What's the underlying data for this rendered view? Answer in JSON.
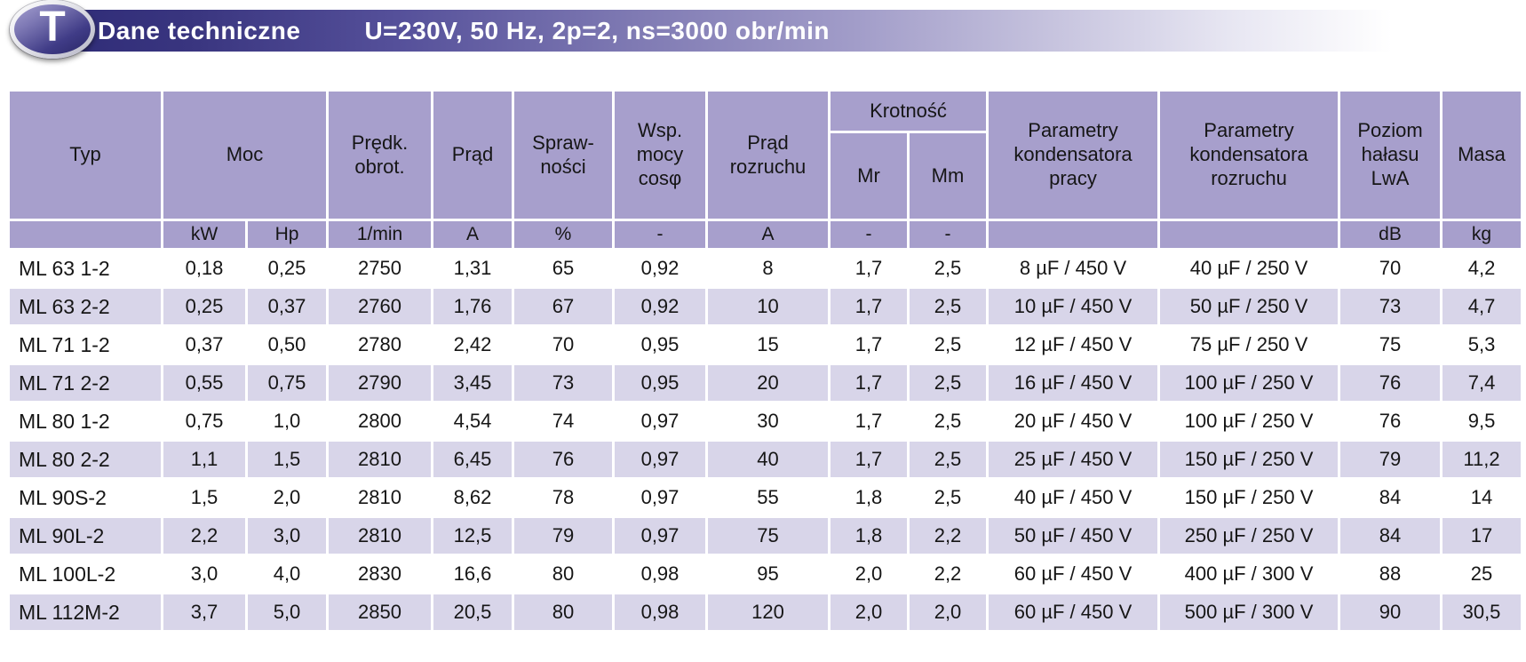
{
  "header": {
    "badge_letter": "T",
    "title": "Dane techniczne",
    "subtitle": "U=230V, 50 Hz, 2p=2, ns=3000 obr/min"
  },
  "colors": {
    "bar_gradient_start": "#2e2b77",
    "table_header_bg": "#a79fcc",
    "row_alt_bg": "#d8d5e9",
    "row_bg": "#ffffff",
    "text": "#161616",
    "bar_text": "#ffffff"
  },
  "table": {
    "headers": {
      "typ": "Typ",
      "moc": "Moc",
      "predk_obrot": "Prędk.\nobrot.",
      "prad": "Prąd",
      "sprawnosci": "Spraw-\nności",
      "wsp_mocy": "Wsp.\nmocy\ncosφ",
      "prad_rozruchu": "Prąd\nrozruchu",
      "krotnosc": "Krotność",
      "mr": "Mr",
      "mm": "Mm",
      "param_kond_pracy": "Parametry\nkondensatora\npracy",
      "param_kond_rozruchu": "Parametry\nkondensatora\nrozruchu",
      "poziom_halasu": "Poziom\nhałasu\nLwA",
      "masa": "Masa"
    },
    "units": [
      "",
      "kW",
      "Hp",
      "1/min",
      "A",
      "%",
      "-",
      "A",
      "-",
      "-",
      "",
      "",
      "dB",
      "kg"
    ],
    "rows": [
      [
        "ML 63 1-2",
        "0,18",
        "0,25",
        "2750",
        "1,31",
        "65",
        "0,92",
        "8",
        "1,7",
        "2,5",
        "8 µF / 450 V",
        "40 µF / 250 V",
        "70",
        "4,2"
      ],
      [
        "ML 63 2-2",
        "0,25",
        "0,37",
        "2760",
        "1,76",
        "67",
        "0,92",
        "10",
        "1,7",
        "2,5",
        "10 µF / 450 V",
        "50 µF / 250 V",
        "73",
        "4,7"
      ],
      [
        "ML 71 1-2",
        "0,37",
        "0,50",
        "2780",
        "2,42",
        "70",
        "0,95",
        "15",
        "1,7",
        "2,5",
        "12 µF / 450 V",
        "75 µF / 250 V",
        "75",
        "5,3"
      ],
      [
        "ML 71 2-2",
        "0,55",
        "0,75",
        "2790",
        "3,45",
        "73",
        "0,95",
        "20",
        "1,7",
        "2,5",
        "16 µF / 450 V",
        "100 µF / 250 V",
        "76",
        "7,4"
      ],
      [
        "ML 80 1-2",
        "0,75",
        "1,0",
        "2800",
        "4,54",
        "74",
        "0,97",
        "30",
        "1,7",
        "2,5",
        "20 µF / 450 V",
        "100 µF / 250 V",
        "76",
        "9,5"
      ],
      [
        "ML 80 2-2",
        "1,1",
        "1,5",
        "2810",
        "6,45",
        "76",
        "0,97",
        "40",
        "1,7",
        "2,5",
        "25 µF / 450 V",
        "150 µF / 250 V",
        "79",
        "11,2"
      ],
      [
        "ML 90S-2",
        "1,5",
        "2,0",
        "2810",
        "8,62",
        "78",
        "0,97",
        "55",
        "1,8",
        "2,5",
        "40 µF / 450 V",
        "150 µF / 250 V",
        "84",
        "14"
      ],
      [
        "ML 90L-2",
        "2,2",
        "3,0",
        "2810",
        "12,5",
        "79",
        "0,97",
        "75",
        "1,8",
        "2,2",
        "50 µF / 450 V",
        "250 µF / 250 V",
        "84",
        "17"
      ],
      [
        "ML 100L-2",
        "3,0",
        "4,0",
        "2830",
        "16,6",
        "80",
        "0,98",
        "95",
        "2,0",
        "2,2",
        "60 µF / 450 V",
        "400 µF / 300 V",
        "88",
        "25"
      ],
      [
        "ML 112M-2",
        "3,7",
        "5,0",
        "2850",
        "20,5",
        "80",
        "0,98",
        "120",
        "2,0",
        "2,0",
        "60 µF / 450 V",
        "500 µF / 300 V",
        "90",
        "30,5"
      ]
    ]
  }
}
